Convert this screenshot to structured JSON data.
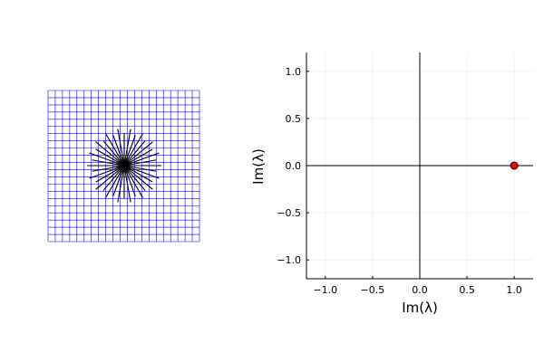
{
  "left_panel": {
    "type": "grid-with-star",
    "grid_color": "#0000ff",
    "star_color": "#000000",
    "grid_divisions": 21,
    "star_rays": 36
  },
  "chart_data": {
    "type": "scatter",
    "title": "",
    "xlabel": "Im(λ)",
    "ylabel": "Im(λ)",
    "xlim": [
      -1.2,
      1.2
    ],
    "ylim": [
      -1.2,
      1.2
    ],
    "xticks": [
      -1.0,
      -0.5,
      0.0,
      0.5,
      1.0
    ],
    "yticks": [
      -1.0,
      -0.5,
      0.0,
      0.5,
      1.0
    ],
    "xtick_labels": [
      "−1.0",
      "−0.5",
      "0.0",
      "0.5",
      "1.0"
    ],
    "ytick_labels": [
      "−1.0",
      "−0.5",
      "0.0",
      "0.5",
      "1.0"
    ],
    "grid": true,
    "zero_lines": true,
    "legend": "none",
    "point_color": "#ff0000",
    "points": [
      {
        "x": 1.0,
        "y": 0.0
      }
    ]
  }
}
